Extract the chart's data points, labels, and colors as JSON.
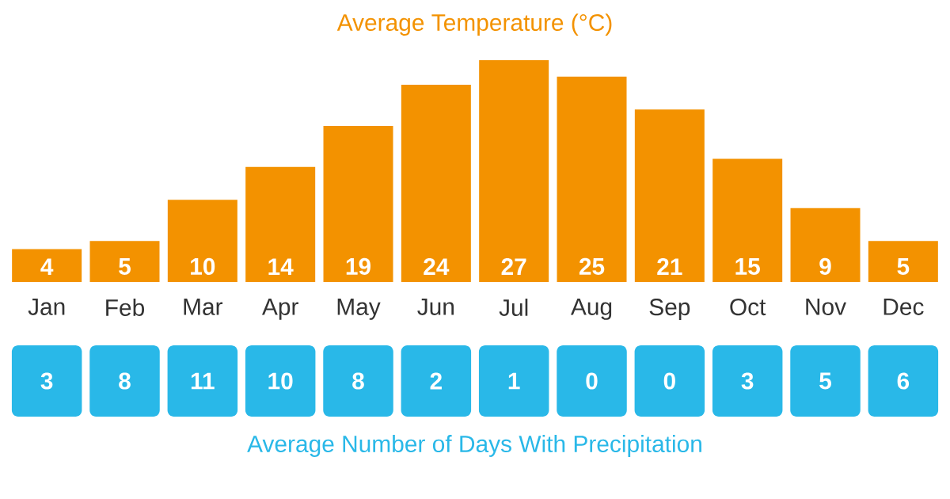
{
  "chart_data": [
    {
      "type": "bar",
      "title": "Average Temperature (°C)",
      "categories": [
        "Jan",
        "Feb",
        "Mar",
        "Apr",
        "May",
        "Jun",
        "Jul",
        "Aug",
        "Sep",
        "Oct",
        "Nov",
        "Dec"
      ],
      "values": [
        4,
        5,
        10,
        14,
        19,
        24,
        27,
        25,
        21,
        15,
        9,
        5
      ],
      "color": "#f39200",
      "data_labels": true
    },
    {
      "type": "other",
      "title": "Average Number of Days With Precipitation",
      "value_labels": [
        "3",
        "8",
        "11",
        "10",
        "8",
        "2",
        "1",
        "0",
        "0",
        "3",
        "5",
        "6"
      ],
      "color": "#29b8e8"
    }
  ]
}
